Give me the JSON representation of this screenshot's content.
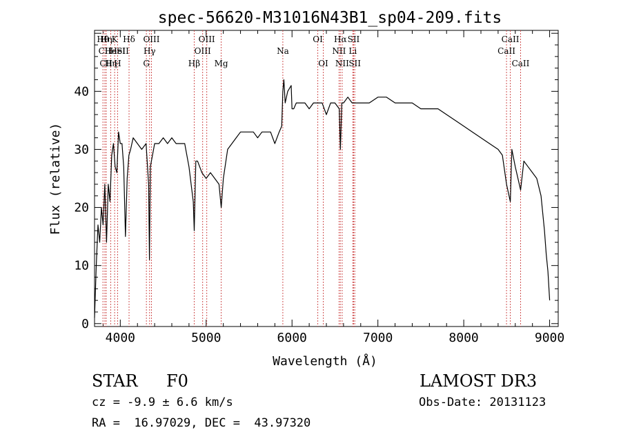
{
  "chart_data": {
    "type": "line",
    "title": "spec-56620-M31016N43B1_sp04-209.fits",
    "xlabel": "Wavelength (Å)",
    "ylabel": "Flux (relative)",
    "xlim": [
      3700,
      9100
    ],
    "ylim": [
      -0.5,
      50.5
    ],
    "xticks": [
      4000,
      5000,
      6000,
      7000,
      8000,
      9000
    ],
    "yticks": [
      0,
      10,
      20,
      30,
      40
    ],
    "grid": false,
    "line_color": "#000000",
    "marker_color": "#d05050",
    "series": [
      {
        "x": [
          3700,
          3720,
          3740,
          3760,
          3780,
          3800,
          3820,
          3840,
          3860,
          3880,
          3900,
          3920,
          3940,
          3960,
          3980,
          4000,
          4020,
          4040,
          4060,
          4080,
          4100,
          4120,
          4150,
          4200,
          4250,
          4300,
          4330,
          4340,
          4350,
          4400,
          4450,
          4500,
          4550,
          4600,
          4650,
          4700,
          4750,
          4800,
          4850,
          4861,
          4880,
          4900,
          4950,
          5000,
          5050,
          5100,
          5150,
          5175,
          5200,
          5250,
          5300,
          5350,
          5400,
          5450,
          5500,
          5550,
          5600,
          5650,
          5700,
          5750,
          5800,
          5850,
          5880,
          5893,
          5905,
          5920,
          5950,
          5990,
          6000,
          6020,
          6050,
          6100,
          6150,
          6200,
          6250,
          6300,
          6350,
          6400,
          6450,
          6500,
          6550,
          6563,
          6580,
          6600,
          6650,
          6700,
          6750,
          6800,
          6900,
          7000,
          7100,
          7200,
          7300,
          7400,
          7500,
          7600,
          7700,
          7800,
          7900,
          8000,
          8100,
          8200,
          8300,
          8400,
          8450,
          8498,
          8542,
          8560,
          8600,
          8662,
          8700,
          8750,
          8800,
          8850,
          8900,
          8940,
          8960,
          8980,
          9000
        ],
        "y": [
          1,
          10,
          17,
          14,
          20,
          17,
          24,
          14,
          24,
          21,
          29,
          31,
          27,
          26,
          33,
          31,
          31,
          27,
          15,
          25,
          29,
          30,
          32,
          31,
          30,
          31,
          24,
          11,
          27,
          31,
          31,
          32,
          31,
          32,
          31,
          31,
          31,
          27,
          21,
          16,
          28,
          28,
          26,
          25,
          26,
          25,
          24,
          20,
          25,
          30,
          31,
          32,
          33,
          33,
          33,
          33,
          32,
          33,
          33,
          33,
          31,
          33,
          34,
          40,
          42,
          38,
          40,
          41,
          37,
          37,
          38,
          38,
          38,
          37,
          38,
          38,
          38,
          36,
          38,
          38,
          37,
          30,
          38,
          38,
          39,
          38,
          38,
          38,
          38,
          39,
          39,
          38,
          38,
          38,
          37,
          37,
          37,
          36,
          35,
          34,
          33,
          32,
          31,
          30,
          29,
          24,
          21,
          30,
          27,
          23,
          28,
          27,
          26,
          25,
          22,
          16,
          12,
          9,
          4
        ]
      }
    ],
    "annotations": [
      {
        "label": "Hθ",
        "x": 3798,
        "row": 1
      },
      {
        "label": "CII",
        "x": 3820,
        "row": 2
      },
      {
        "label": "CII",
        "x": 3834,
        "row": 3
      },
      {
        "label": "Hη",
        "x": 3836,
        "row": 1
      },
      {
        "label": "He",
        "x": 3889,
        "row": 2
      },
      {
        "label": "K",
        "x": 3934,
        "row": 1
      },
      {
        "label": "Hη",
        "x": 3890,
        "row": 3
      },
      {
        "label": "H",
        "x": 3969,
        "row": 3
      },
      {
        "label": "HeI",
        "x": 3970,
        "row": 2
      },
      {
        "label": "SII",
        "x": 4030,
        "row": 2
      },
      {
        "label": "Hδ",
        "x": 4102,
        "row": 1
      },
      {
        "label": "OIII",
        "x": 4363,
        "row": 1
      },
      {
        "label": "Hγ",
        "x": 4341,
        "row": 2
      },
      {
        "label": "G",
        "x": 4304,
        "row": 3
      },
      {
        "label": "Hβ",
        "x": 4861,
        "row": 3
      },
      {
        "label": "OIII",
        "x": 5007,
        "row": 1
      },
      {
        "label": "OIII",
        "x": 4959,
        "row": 2
      },
      {
        "label": "Mg",
        "x": 5175,
        "row": 3
      },
      {
        "label": "Na",
        "x": 5893,
        "row": 2
      },
      {
        "label": "OI",
        "x": 6300,
        "row": 1
      },
      {
        "label": "OI",
        "x": 6364,
        "row": 3
      },
      {
        "label": "Hα",
        "x": 6563,
        "row": 1
      },
      {
        "label": "NII",
        "x": 6548,
        "row": 2
      },
      {
        "label": "NII",
        "x": 6584,
        "row": 3
      },
      {
        "label": "SII",
        "x": 6717,
        "row": 1
      },
      {
        "label": "Li",
        "x": 6708,
        "row": 2
      },
      {
        "label": "SII",
        "x": 6731,
        "row": 3
      },
      {
        "label": "CaII",
        "x": 8542,
        "row": 1
      },
      {
        "label": "CaII",
        "x": 8498,
        "row": 2
      },
      {
        "label": "CaII",
        "x": 8662,
        "row": 3
      }
    ],
    "line_markers": [
      3798,
      3820,
      3836,
      3889,
      3934,
      3969,
      4102,
      4304,
      4341,
      4363,
      4861,
      4959,
      5007,
      5175,
      5893,
      6300,
      6364,
      6548,
      6563,
      6584,
      6708,
      6717,
      6731,
      8498,
      8542,
      8662
    ]
  },
  "info": {
    "class": "STAR",
    "subclass": "F0",
    "survey": "LAMOST DR3",
    "cz": "cz = -9.9 ± 6.6 km/s",
    "obs_date": "Obs-Date: 20131123",
    "radec": "RA =  16.97029, DEC =  43.97320"
  }
}
